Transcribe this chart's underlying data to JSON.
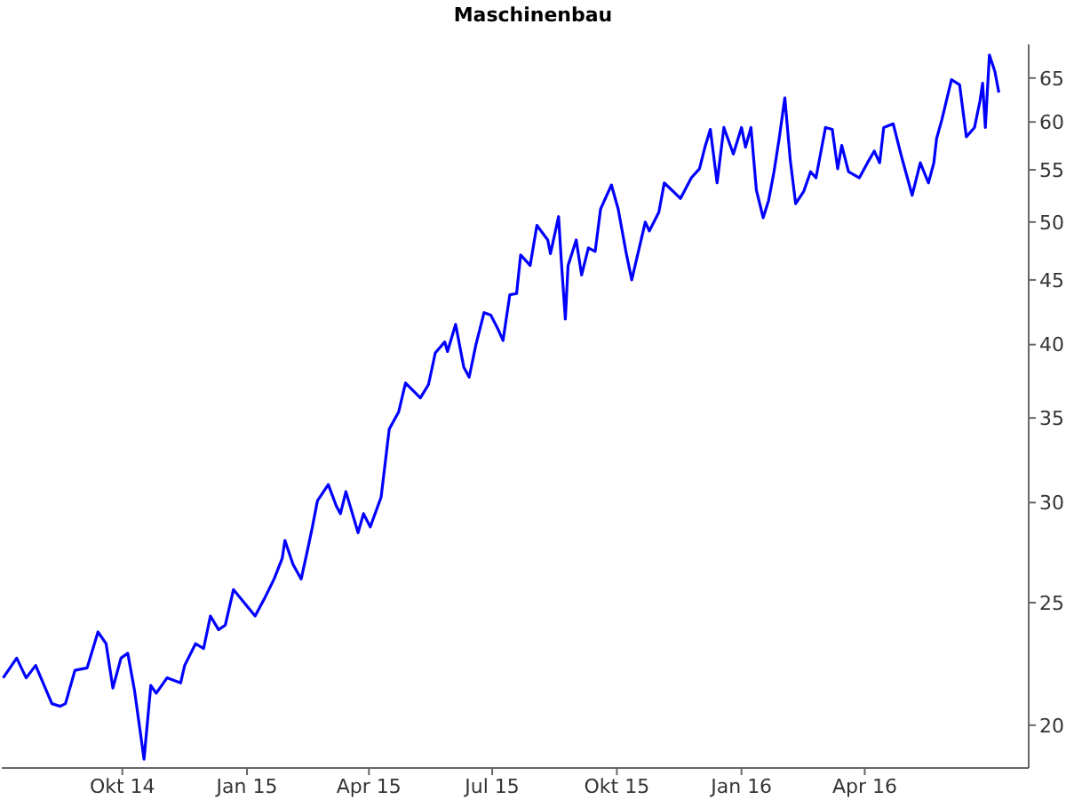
{
  "chart_data": {
    "type": "line",
    "title": "Maschinenbau",
    "x": [
      "2014-07-05",
      "2014-07-15",
      "2014-07-22",
      "2014-07-29",
      "2014-08-10",
      "2014-08-16",
      "2014-08-20",
      "2014-08-27",
      "2014-09-05",
      "2014-09-13",
      "2014-09-19",
      "2014-09-24",
      "2014-09-30",
      "2014-10-05",
      "2014-10-10",
      "2014-10-17",
      "2014-10-22",
      "2014-10-26",
      "2014-11-03",
      "2014-11-13",
      "2014-11-16",
      "2014-11-24",
      "2014-11-30",
      "2014-12-05",
      "2014-12-11",
      "2014-12-16",
      "2014-12-22",
      "2015-01-07",
      "2015-01-14",
      "2015-01-21",
      "2015-01-27",
      "2015-01-29",
      "2015-02-04",
      "2015-02-10",
      "2015-02-14",
      "2015-02-18",
      "2015-02-22",
      "2015-03-02",
      "2015-03-08",
      "2015-03-11",
      "2015-03-15",
      "2015-03-24",
      "2015-03-28",
      "2015-04-02",
      "2015-04-10",
      "2015-04-16",
      "2015-04-23",
      "2015-04-28",
      "2015-05-09",
      "2015-05-15",
      "2015-05-20",
      "2015-05-27",
      "2015-05-29",
      "2015-06-04",
      "2015-06-10",
      "2015-06-14",
      "2015-06-19",
      "2015-06-25",
      "2015-06-30",
      "2015-07-05",
      "2015-07-09",
      "2015-07-14",
      "2015-07-19",
      "2015-07-22",
      "2015-07-29",
      "2015-08-03",
      "2015-08-11",
      "2015-08-13",
      "2015-08-19",
      "2015-08-21",
      "2015-08-24",
      "2015-08-26",
      "2015-09-01",
      "2015-09-05",
      "2015-09-10",
      "2015-09-15",
      "2015-09-19",
      "2015-09-27",
      "2015-10-02",
      "2015-10-08",
      "2015-10-12",
      "2015-10-22",
      "2015-10-25",
      "2015-11-01",
      "2015-11-05",
      "2015-11-17",
      "2015-11-25",
      "2015-12-01",
      "2015-12-05",
      "2015-12-09",
      "2015-12-14",
      "2015-12-19",
      "2015-12-26",
      "2016-01-01",
      "2016-01-04",
      "2016-01-08",
      "2016-01-12",
      "2016-01-17",
      "2016-01-21",
      "2016-01-25",
      "2016-01-29",
      "2016-02-02",
      "2016-02-06",
      "2016-02-10",
      "2016-02-16",
      "2016-02-21",
      "2016-02-25",
      "2016-03-03",
      "2016-03-08",
      "2016-03-12",
      "2016-03-15",
      "2016-03-20",
      "2016-03-28",
      "2016-04-03",
      "2016-04-08",
      "2016-04-12",
      "2016-04-15",
      "2016-04-22",
      "2016-04-28",
      "2016-05-06",
      "2016-05-12",
      "2016-05-18",
      "2016-05-22",
      "2016-05-24",
      "2016-05-28",
      "2016-06-04",
      "2016-06-10",
      "2016-06-15",
      "2016-06-21",
      "2016-06-25",
      "2016-06-27",
      "2016-06-29",
      "2016-07-02",
      "2016-07-06",
      "2016-07-09"
    ],
    "series": [
      {
        "color": "#0000ff",
        "values": [
          21.8,
          22.6,
          21.8,
          22.3,
          20.8,
          20.7,
          20.8,
          22.1,
          22.2,
          23.7,
          23.2,
          21.4,
          22.6,
          22.8,
          21.3,
          18.8,
          21.5,
          21.2,
          21.8,
          21.6,
          22.3,
          23.2,
          23.0,
          24.4,
          23.8,
          24.0,
          25.6,
          24.4,
          25.2,
          26.1,
          27.1,
          28.0,
          26.8,
          26.1,
          27.3,
          28.6,
          30.1,
          31.0,
          29.8,
          29.4,
          30.6,
          28.4,
          29.4,
          28.7,
          30.3,
          34.3,
          35.4,
          37.3,
          36.3,
          37.2,
          39.4,
          40.2,
          39.5,
          41.5,
          38.4,
          37.7,
          40.0,
          42.4,
          42.2,
          41.2,
          40.3,
          43.8,
          43.9,
          47.1,
          46.2,
          49.7,
          48.4,
          47.2,
          50.5,
          46.6,
          41.9,
          46.2,
          48.4,
          45.4,
          47.7,
          47.4,
          51.2,
          53.5,
          51.2,
          47.2,
          45.0,
          50.0,
          49.2,
          50.9,
          53.7,
          52.2,
          54.2,
          55.1,
          57.3,
          59.2,
          53.7,
          59.4,
          56.6,
          59.4,
          57.3,
          59.4,
          53.0,
          50.4,
          52.0,
          54.8,
          58.4,
          62.7,
          56.0,
          51.7,
          52.9,
          54.8,
          54.2,
          59.4,
          59.2,
          55.1,
          57.5,
          54.8,
          54.2,
          55.7,
          56.9,
          55.7,
          59.4,
          59.8,
          56.4,
          52.5,
          55.7,
          53.7,
          55.7,
          58.2,
          60.3,
          64.8,
          64.2,
          58.4,
          59.4,
          62.3,
          64.4,
          59.4,
          67.8,
          65.8,
          63.3
        ]
      }
    ],
    "xlim": [
      "2014-07-04",
      "2016-07-31"
    ],
    "xticks": [
      {
        "value": "2014-10-01",
        "label": "Okt 14"
      },
      {
        "value": "2015-01-01",
        "label": "Jan 15"
      },
      {
        "value": "2015-04-01",
        "label": "Apr 15"
      },
      {
        "value": "2015-07-01",
        "label": "Jul 15"
      },
      {
        "value": "2015-10-01",
        "label": "Okt 15"
      },
      {
        "value": "2016-01-01",
        "label": "Jan 16"
      },
      {
        "value": "2016-04-01",
        "label": "Apr 16"
      }
    ],
    "ylim": [
      18.5,
      69.1
    ],
    "yticks": [
      20,
      25,
      30,
      35,
      40,
      45,
      50,
      55,
      60,
      65
    ],
    "log": true,
    "grid": false,
    "legend": false,
    "marker": "none",
    "line_style": "solid"
  }
}
